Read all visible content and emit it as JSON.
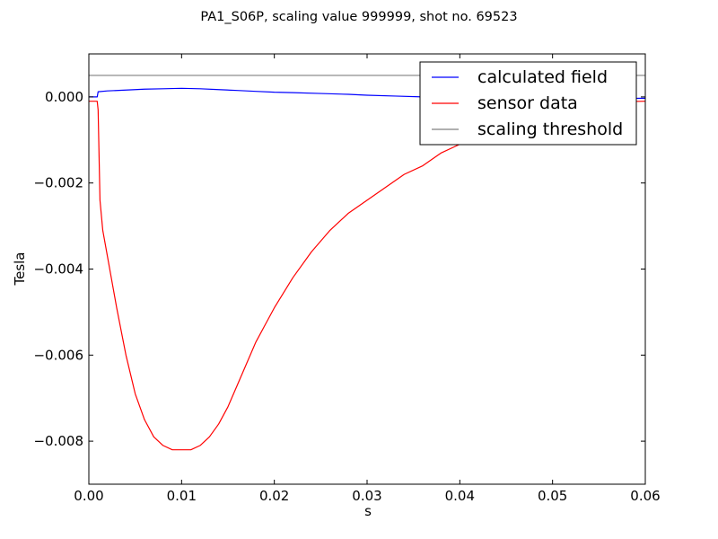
{
  "chart_data": {
    "type": "line",
    "title": "PA1_S06P, scaling value 999999, shot no. 69523",
    "xlabel": "s",
    "ylabel": "Tesla",
    "xlim": [
      0.0,
      0.06
    ],
    "ylim": [
      -0.009,
      0.001
    ],
    "xticks": [
      0.0,
      0.01,
      0.02,
      0.03,
      0.04,
      0.05,
      0.06
    ],
    "xtick_labels": [
      "0.00",
      "0.01",
      "0.02",
      "0.03",
      "0.04",
      "0.05",
      "0.06"
    ],
    "yticks": [
      0.0,
      -0.002,
      -0.004,
      -0.006,
      -0.008
    ],
    "ytick_labels": [
      "0.000",
      "−0.002",
      "−0.004",
      "−0.006",
      "−0.008"
    ],
    "grid": false,
    "legend_position": "top-right",
    "series": [
      {
        "name": "calculated field",
        "color": "#0000ff",
        "x": [
          0.0,
          0.0009,
          0.001,
          0.002,
          0.004,
          0.006,
          0.008,
          0.01,
          0.012,
          0.014,
          0.016,
          0.018,
          0.02,
          0.022,
          0.025,
          0.028,
          0.03,
          0.033,
          0.036,
          0.04,
          0.045,
          0.05,
          0.055,
          0.06
        ],
        "y": [
          0.0,
          0.0,
          0.00012,
          0.00014,
          0.00016,
          0.00018,
          0.00019,
          0.0002,
          0.00019,
          0.00017,
          0.00015,
          0.00013,
          0.00011,
          0.0001,
          8e-05,
          6e-05,
          4e-05,
          2e-05,
          0.0,
          -1e-05,
          -3e-05,
          -4e-05,
          -4e-05,
          -3e-05
        ]
      },
      {
        "name": "sensor data",
        "color": "#ff0000",
        "x": [
          0.0,
          0.0009,
          0.001,
          0.0012,
          0.0015,
          0.002,
          0.003,
          0.004,
          0.005,
          0.006,
          0.007,
          0.008,
          0.009,
          0.01,
          0.0105,
          0.011,
          0.012,
          0.013,
          0.014,
          0.015,
          0.016,
          0.017,
          0.018,
          0.019,
          0.02,
          0.022,
          0.024,
          0.026,
          0.028,
          0.03,
          0.032,
          0.034,
          0.036,
          0.038,
          0.04,
          0.042,
          0.045,
          0.048,
          0.05,
          0.055,
          0.06
        ],
        "y": [
          -0.0001,
          -0.0001,
          -0.0003,
          -0.0024,
          -0.0031,
          -0.0037,
          -0.0049,
          -0.006,
          -0.0069,
          -0.0075,
          -0.0079,
          -0.0081,
          -0.0082,
          -0.0082,
          -0.0082,
          -0.0082,
          -0.0081,
          -0.0079,
          -0.0076,
          -0.0072,
          -0.0067,
          -0.0062,
          -0.0057,
          -0.0053,
          -0.0049,
          -0.0042,
          -0.0036,
          -0.0031,
          -0.0027,
          -0.0024,
          -0.0021,
          -0.0018,
          -0.0016,
          -0.0013,
          -0.0011,
          -0.0009,
          -0.00055,
          -0.0003,
          -0.0002,
          -0.00012,
          -0.0001
        ]
      },
      {
        "name": "scaling threshold",
        "color": "#808080",
        "x": [
          0.0,
          0.06
        ],
        "y": [
          0.0005,
          0.0005
        ]
      }
    ]
  }
}
